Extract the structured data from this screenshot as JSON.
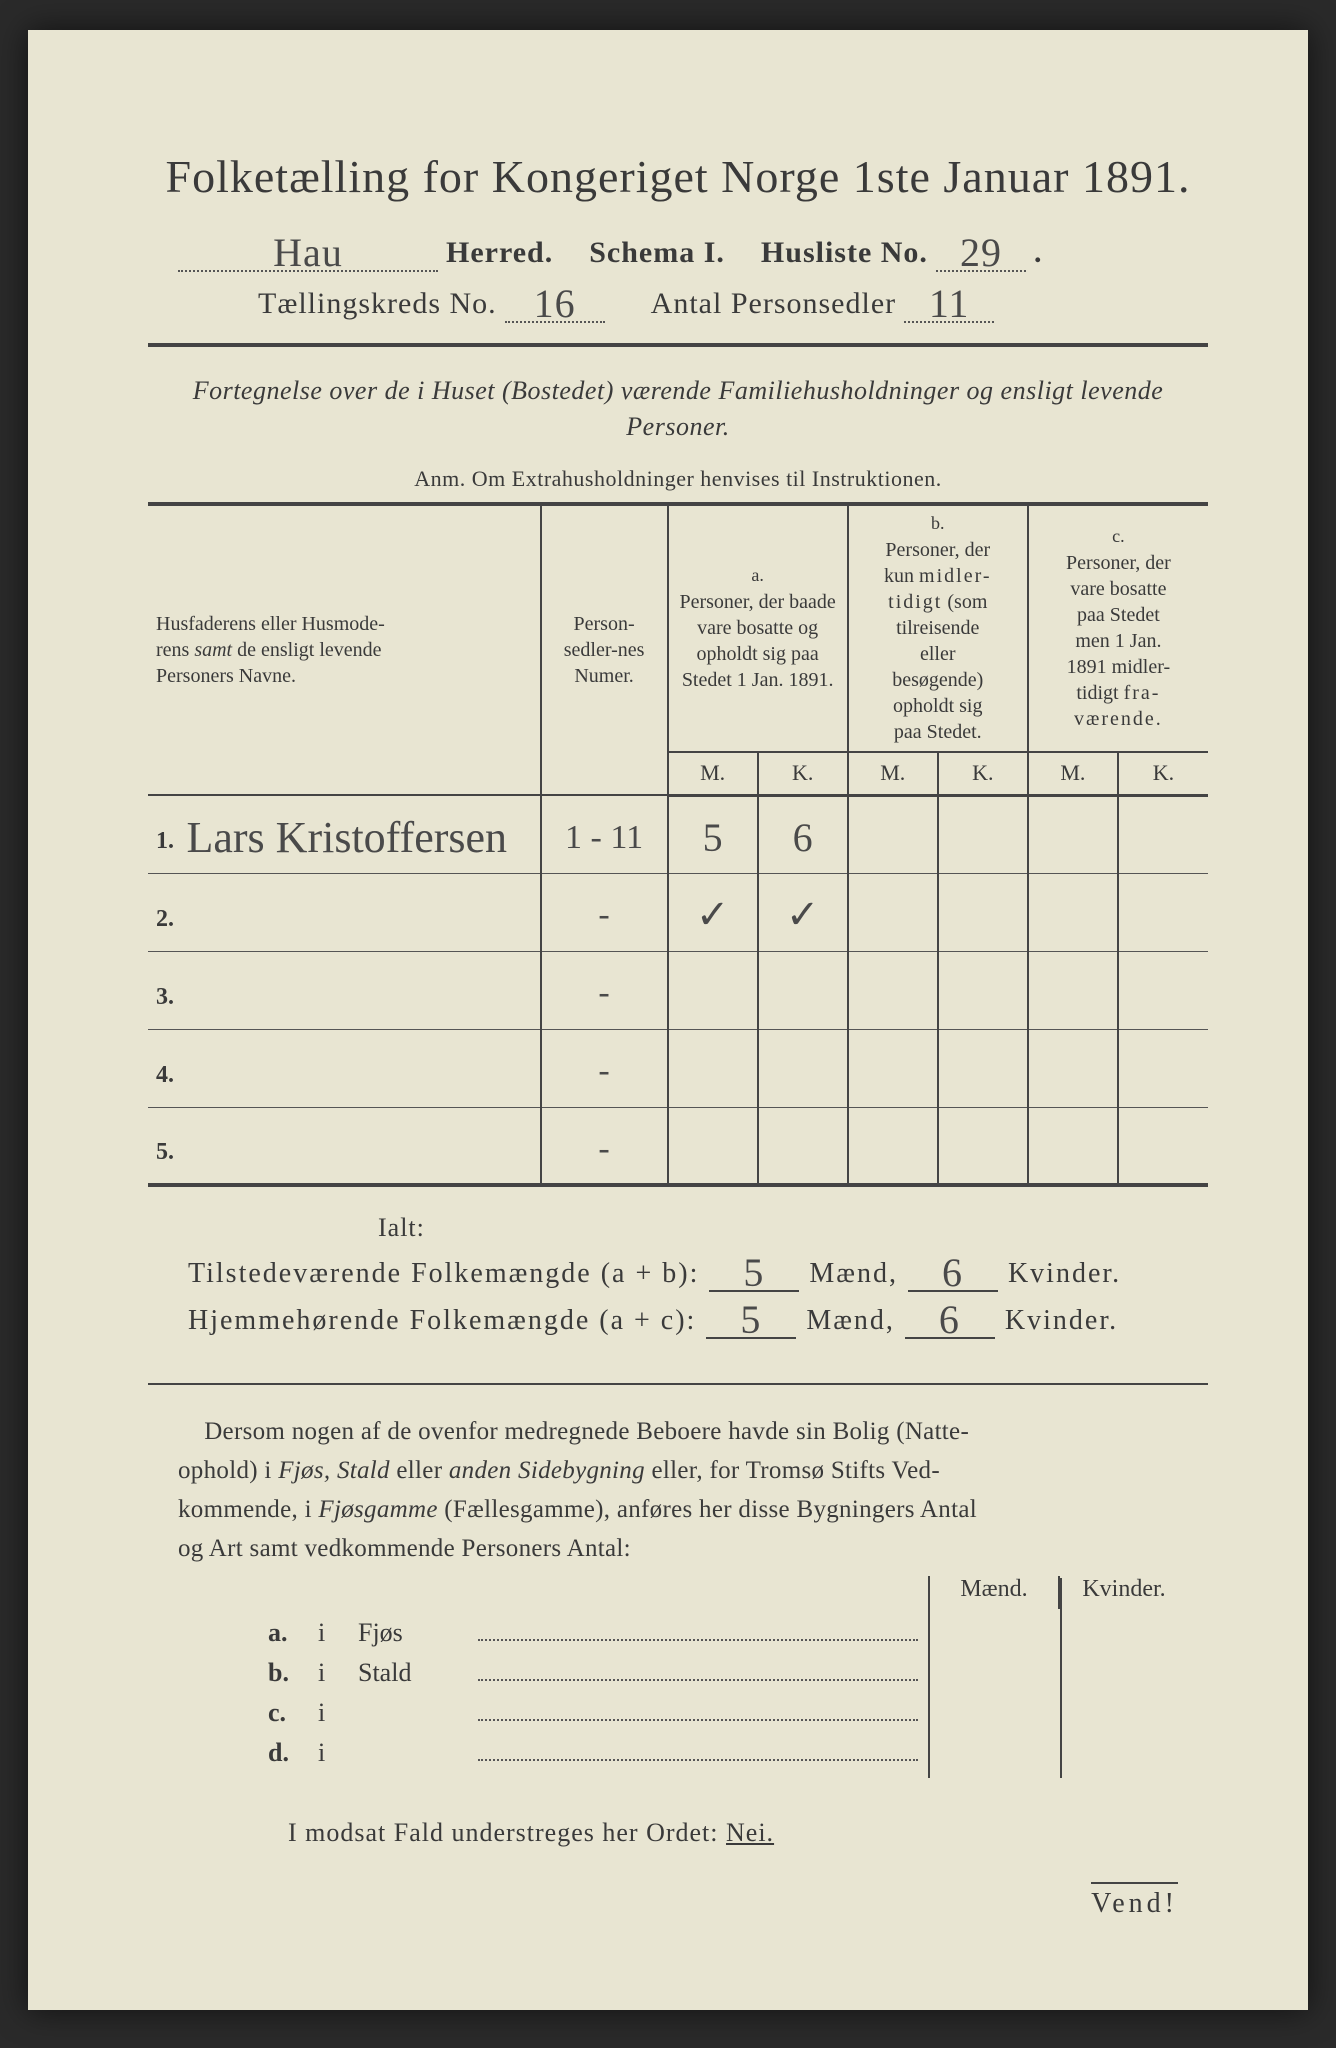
{
  "title": "Folketælling for Kongeriget Norge 1ste Januar 1891.",
  "header": {
    "herred_hand": "Hau",
    "herred_label": "Herred.",
    "schema_label": "Schema I.",
    "husliste_label": "Husliste No.",
    "husliste_no_hand": "29",
    "kreds_label": "Tællingskreds No.",
    "kreds_no_hand": "16",
    "antal_label": "Antal Personsedler",
    "antal_hand": "11"
  },
  "subhead": "Fortegnelse over de i Huset (Bostedet) værende Familiehusholdninger og ensligt levende Personer.",
  "anm": "Anm.  Om Extrahusholdninger henvises til Instruktionen.",
  "table": {
    "col_name": "Husfaderens eller Husmoderens samt de ensligt levende Personers Navne.",
    "col_num": "Person-sedler-nes Numer.",
    "col_a_letter": "a.",
    "col_a": "Personer, der baade vare bosatte og opholdt sig paa Stedet 1 Jan. 1891.",
    "col_b_letter": "b.",
    "col_b": "Personer, der kun midler-tidigt (som tilreisende eller besøgende) opholdt sig paa Stedet.",
    "col_c_letter": "c.",
    "col_c": "Personer, der vare bosatte paa Stedet men 1 Jan. 1891 midler-tidigt fra-værende.",
    "mk_m": "M.",
    "mk_k": "K.",
    "rows": [
      {
        "n": "1.",
        "name_hand": "Lars Kristoffersen",
        "num_hand": "1 - 11",
        "a_m": "5",
        "a_k": "6",
        "b_m": "",
        "b_k": "",
        "c_m": "",
        "c_k": ""
      },
      {
        "n": "2.",
        "name_hand": "",
        "num_hand": "-",
        "a_m": "✓",
        "a_k": "✓",
        "b_m": "",
        "b_k": "",
        "c_m": "",
        "c_k": ""
      },
      {
        "n": "3.",
        "name_hand": "",
        "num_hand": "-",
        "a_m": "",
        "a_k": "",
        "b_m": "",
        "b_k": "",
        "c_m": "",
        "c_k": ""
      },
      {
        "n": "4.",
        "name_hand": "",
        "num_hand": "-",
        "a_m": "",
        "a_k": "",
        "b_m": "",
        "b_k": "",
        "c_m": "",
        "c_k": ""
      },
      {
        "n": "5.",
        "name_hand": "",
        "num_hand": "-",
        "a_m": "",
        "a_k": "",
        "b_m": "",
        "b_k": "",
        "c_m": "",
        "c_k": ""
      }
    ]
  },
  "sums": {
    "ialt": "Ialt:",
    "line1_label": "Tilstedeværende Folkemængde (a + b):",
    "line2_label": "Hjemmehørende Folkemængde (a + c):",
    "maend": "Mænd,",
    "kvinder": "Kvinder.",
    "l1_m": "5",
    "l1_k": "6",
    "l2_m": "5",
    "l2_k": "6"
  },
  "para": "Dersom nogen af de ovenfor medregnede Beboere havde sin Bolig (Natteophold) i Fjøs, Stald eller anden Sidebygning eller, for Tromsø Stifts Vedkommende, i Fjøsgamme (Fællesgamme), anføres her disse Bygningers Antal og Art samt vedkommende Personers Antal:",
  "abcd": {
    "head_m": "Mænd.",
    "head_k": "Kvinder.",
    "rows": [
      {
        "lbl": "a.",
        "i": "i",
        "txt": "Fjøs"
      },
      {
        "lbl": "b.",
        "i": "i",
        "txt": "Stald"
      },
      {
        "lbl": "c.",
        "i": "i",
        "txt": ""
      },
      {
        "lbl": "d.",
        "i": "i",
        "txt": ""
      }
    ]
  },
  "nei": {
    "pre": "I modsat Fald understreges her Ordet:",
    "word": "Nei."
  },
  "vend": "Vend!"
}
